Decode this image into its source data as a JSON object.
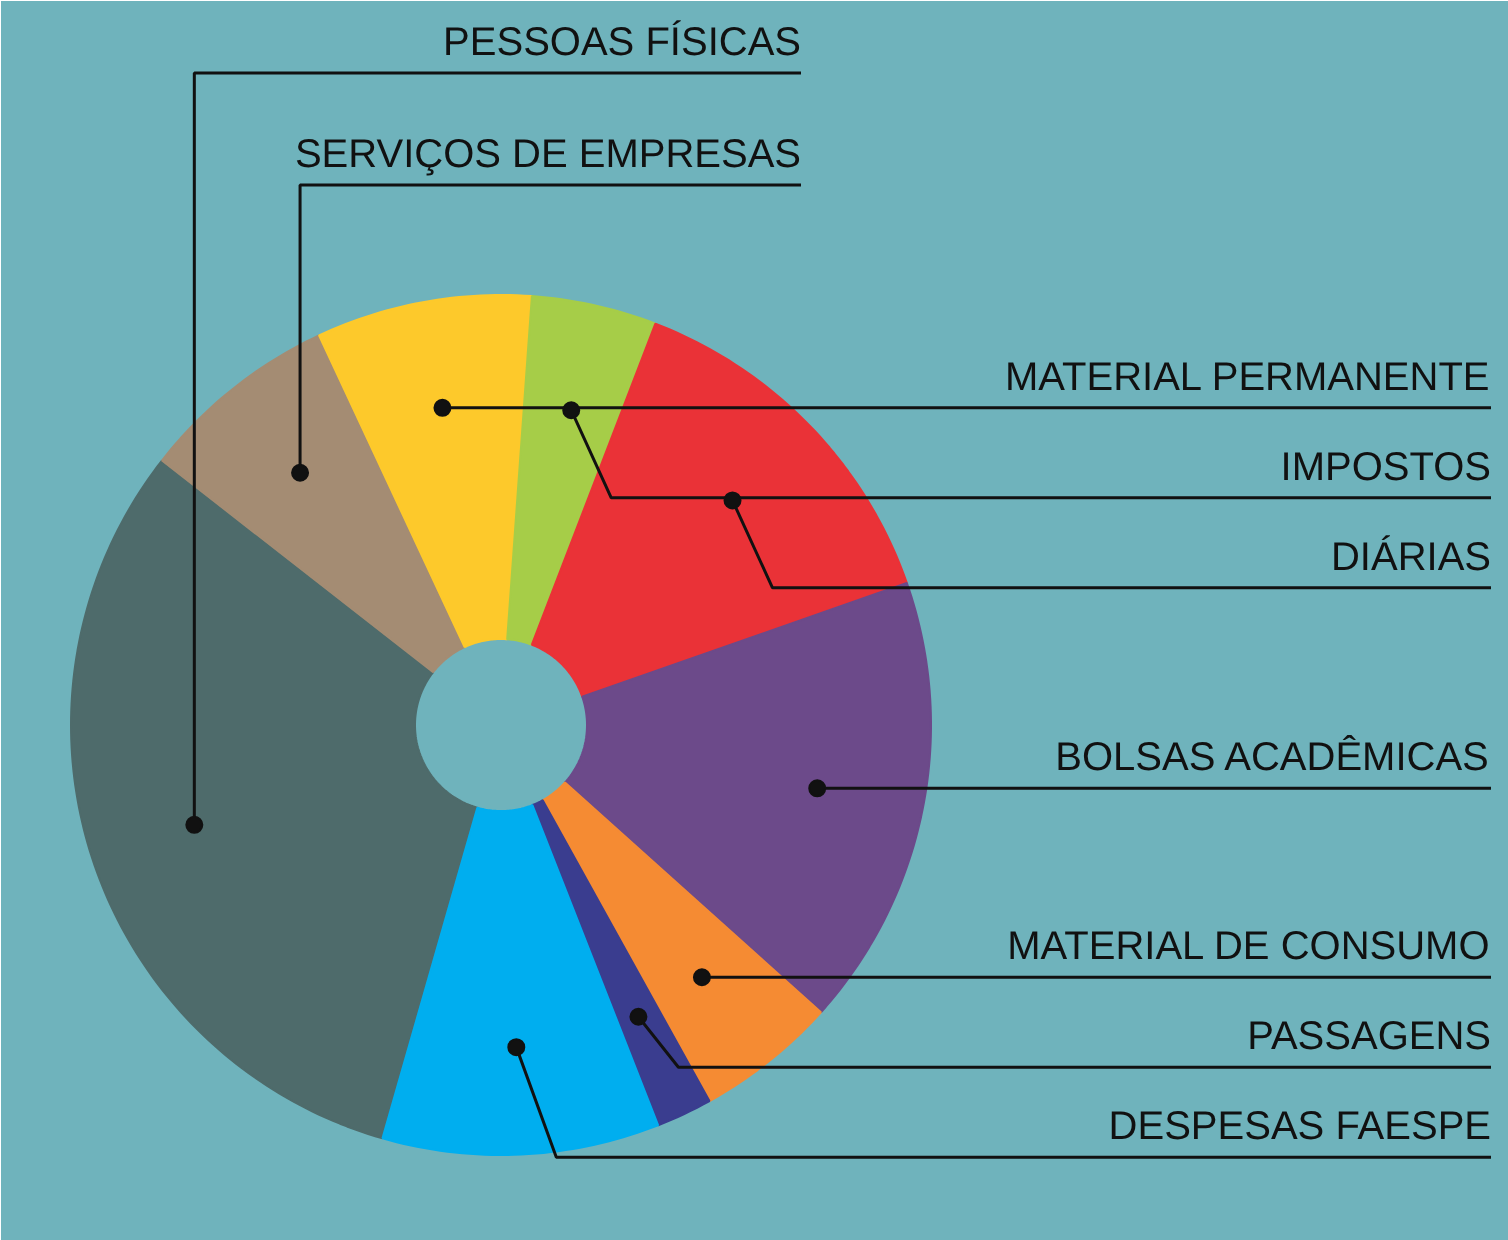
{
  "chart_data": {
    "type": "donut",
    "categories": [
      "PESSOAS FÍSICAS",
      "SERVIÇOS DE EMPRESAS",
      "MATERIAL PERMANENTE",
      "IMPOSTOS",
      "DIÁRIAS",
      "BOLSAS ACADÊMICAS",
      "MATERIAL DE CONSUMO",
      "PASSAGENS",
      "DESPESAS FAESPE"
    ],
    "values": [
      31.1,
      7.5,
      8.1,
      4.7,
      13.8,
      17.0,
      5.3,
      2.1,
      10.4
    ],
    "colors": [
      "#4e6b6b",
      "#a48c73",
      "#fdc92b",
      "#a6cd48",
      "#ea3237",
      "#6c4a8a",
      "#f58b33",
      "#3a3d8f",
      "#00aeef"
    ]
  }
}
